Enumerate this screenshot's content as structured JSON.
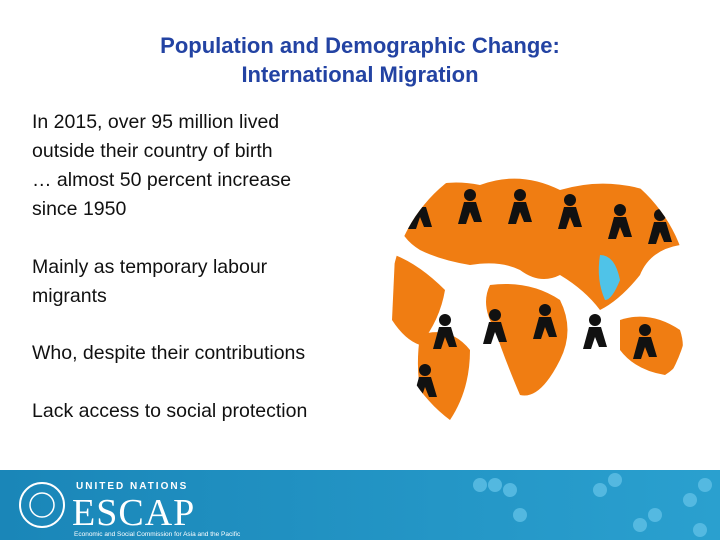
{
  "slide": {
    "title": [
      "Population and Demographic Change:",
      "International Migration"
    ],
    "paragraphs": [
      [
        "In 2015, over 95 million lived",
        "outside their country of birth",
        "… almost 50 percent increase",
        "since 1950"
      ],
      [
        "Mainly as temporary labour",
        "migrants"
      ],
      [
        "Who, despite their contributions"
      ],
      [
        "Lack access to social protection"
      ]
    ],
    "footer": {
      "org": "UNITED NATIONS",
      "name": "ESCAP",
      "subtitle": "Economic and Social Commission for Asia and the Pacific"
    }
  }
}
